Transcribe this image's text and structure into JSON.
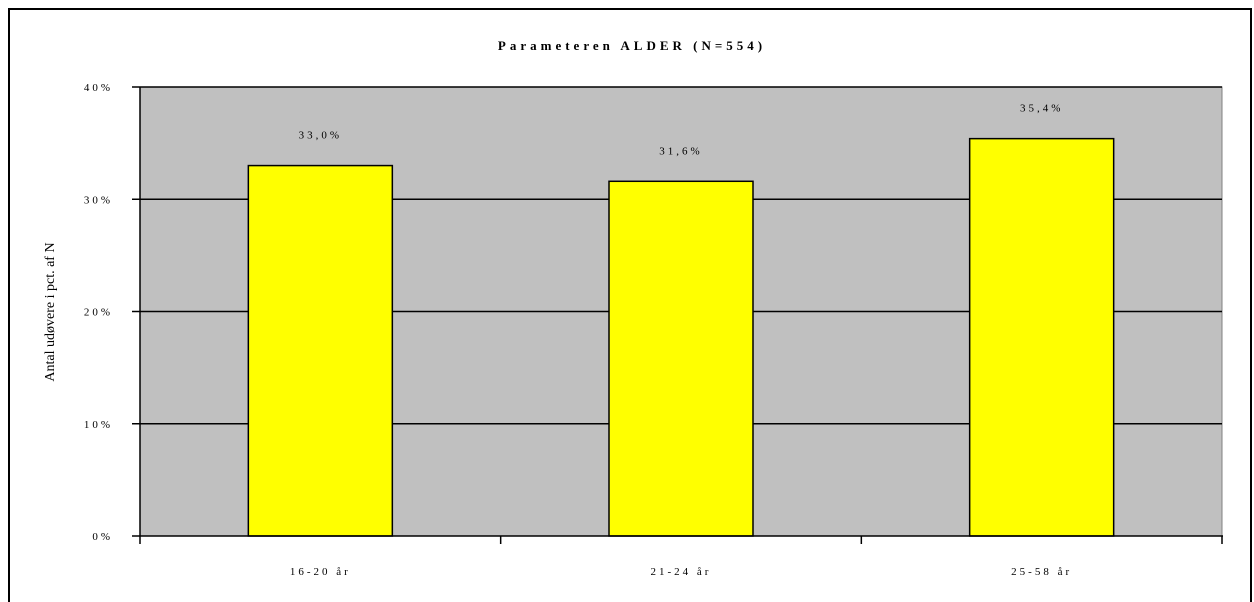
{
  "chart_data": {
    "type": "bar",
    "title": "Parameteren ALDER (N=554)",
    "ylabel": "Antal udøvere i pct. af N",
    "xlabel": "",
    "categories": [
      "16-20 år",
      "21-24 år",
      "25-58 år"
    ],
    "values": [
      33.0,
      31.6,
      35.4
    ],
    "data_labels": [
      "33,0%",
      "31,6%",
      "35,4%"
    ],
    "ylim": [
      0,
      40
    ],
    "yticks": [
      0,
      10,
      20,
      30,
      40
    ],
    "ytick_labels": [
      "0%",
      "10%",
      "20%",
      "30%",
      "40%"
    ],
    "grid": true,
    "legend": "none",
    "colors": {
      "bar": "#ffff00",
      "plot_bg": "#c0c0c0",
      "grid": "#000000"
    }
  }
}
